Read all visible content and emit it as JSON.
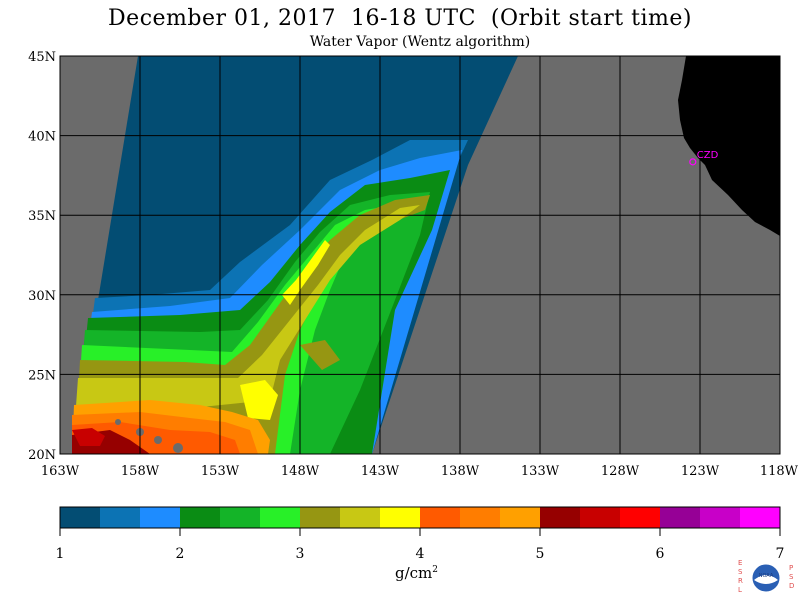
{
  "header": {
    "title": "December 01, 2017  16-18 UTC  (Orbit start time)",
    "subtitle": "Water Vapor (Wentz algorithm)"
  },
  "map": {
    "lat_labels": [
      "45N",
      "40N",
      "35N",
      "30N",
      "25N",
      "20N"
    ],
    "lon_labels": [
      "163W",
      "158W",
      "153W",
      "148W",
      "143W",
      "138W",
      "133W",
      "128W",
      "123W",
      "118W"
    ],
    "lat_values": [
      45,
      40,
      35,
      30,
      25,
      20
    ],
    "lon_values": [
      -163,
      -158,
      -153,
      -148,
      -143,
      -138,
      -133,
      -128,
      -123,
      -118
    ],
    "lat_range": [
      20,
      45
    ],
    "lon_range": [
      -163,
      -118
    ],
    "station": {
      "label": "CZD",
      "lat": 38.6,
      "lon": -123.2
    },
    "colors": {
      "nodata": "#6b6b6b",
      "land": "#000000",
      "grid": "#000000",
      "station": "#ff00ff"
    }
  },
  "colorbar": {
    "unit": "g/cm",
    "unit_exp": "2",
    "ticks": [
      "1",
      "2",
      "3",
      "4",
      "5",
      "6",
      "7"
    ],
    "tick_values": [
      1,
      2,
      3,
      4,
      5,
      6,
      7
    ],
    "colors": [
      "#034d73",
      "#0c73b4",
      "#1e8cff",
      "#0a8c14",
      "#14b428",
      "#28f028",
      "#969612",
      "#c8c814",
      "#ffff00",
      "#ff5a00",
      "#ff7d00",
      "#ffa000",
      "#960000",
      "#c80000",
      "#ff0000",
      "#960096",
      "#c800c8",
      "#ff00ff"
    ]
  },
  "logo": {
    "left_text": "ESRL",
    "right_text": "PSD",
    "badge": "NOAA"
  }
}
